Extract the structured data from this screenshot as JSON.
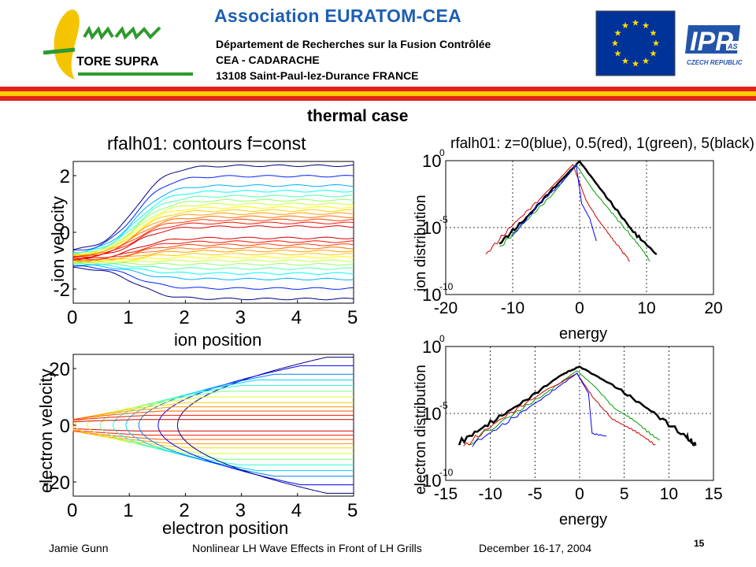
{
  "header": {
    "logo_text": "TORE SUPRA",
    "org_title": "Association  EURATOM-CEA",
    "org_lines": [
      "Département de Recherches sur la Fusion Contrôlée",
      "CEA - CADARACHE",
      "13108 Saint-Paul-lez-Durance   FRANCE"
    ],
    "partner_logo_text": "IPP",
    "partner_logo_sup": "AS",
    "partner_logo_caption": "CZECH REPUBLIC",
    "colors": {
      "title_blue": "#1d5fb4",
      "stripe_red": "#e2231a",
      "stripe_yellow": "#ffcc00",
      "logo_green": "#2e9a2e",
      "logo_yellow": "#f5c400",
      "eu_blue": "#003399",
      "eu_star": "#ffdd00"
    },
    "icons": [
      "omega-logo",
      "eu-flag-icon",
      "ipp-logo"
    ]
  },
  "slide_title": "thermal case",
  "footer": {
    "author": "Jamie Gunn",
    "talk_title": "Nonlinear LH Wave Effects in Front of LH Grills",
    "date": "December 16-17, 2004",
    "page_number": "15"
  },
  "chart_data": [
    {
      "type": "contour",
      "title": "rfalh01:         contours f=const",
      "xlabel": "ion position",
      "ylabel": "ion velocity",
      "xlim": [
        0,
        5
      ],
      "ylim": [
        -2.5,
        2.5
      ],
      "xticks": [
        "0",
        "1",
        "2",
        "3",
        "4",
        "5"
      ],
      "yticks": [
        "-2",
        "0",
        "2"
      ],
      "ytick_values": [
        -2,
        0,
        2
      ],
      "levels": [
        2.35,
        1.98,
        1.65,
        1.45,
        1.28,
        1.13,
        1.0,
        0.88,
        0.77,
        0.66,
        0.55,
        0.44,
        0.33,
        0.2,
        -0.2,
        -0.33,
        -0.44,
        -0.55,
        -0.66,
        -0.77,
        -0.88,
        -1.0,
        -1.13,
        -1.28,
        -1.45,
        -1.65,
        -1.98,
        -2.35
      ],
      "beam_center": -0.95,
      "colormap": "jet"
    },
    {
      "type": "line",
      "title": "rfalh01:  z=0(blue), 0.5(red), 1(green), 5(black)",
      "xlabel": "energy",
      "ylabel": "ion distribution",
      "xlim": [
        -20,
        20
      ],
      "ylim": [
        -10,
        0
      ],
      "yscale": "log",
      "xticks": [
        "-20",
        "-10",
        "0",
        "10",
        "20"
      ],
      "ytick_base": "10",
      "ytick_exponents": [
        "0",
        "-5",
        "-10"
      ],
      "grid": "dotted",
      "series": [
        {
          "color": "#000000",
          "x": [
            -12.0,
            -8.0,
            -4.0,
            0.0,
            4.0,
            8.0,
            11.5
          ],
          "y": [
            -6.2,
            -4.3,
            -2.1,
            -0.05,
            -2.7,
            -5.3,
            -7.0
          ]
        },
        {
          "color": "#00a000",
          "x": [
            -12.0,
            -8.0,
            -4.0,
            -0.5,
            2.0,
            5.0,
            8.0,
            10.5
          ],
          "y": [
            -6.5,
            -4.5,
            -2.5,
            -0.3,
            -2.2,
            -4.0,
            -5.8,
            -7.5
          ]
        },
        {
          "color": "#cc0000",
          "x": [
            -14.0,
            -10.0,
            -6.0,
            -1.0,
            1.0,
            3.0,
            5.5,
            7.5
          ],
          "y": [
            -7.0,
            -4.8,
            -2.9,
            -0.3,
            -3.0,
            -4.6,
            -6.2,
            -7.5
          ]
        },
        {
          "color": "#0000ff",
          "x": [
            -10.0,
            -6.0,
            -3.0,
            -0.5,
            0.3,
            1.5,
            2.5
          ],
          "y": [
            -5.6,
            -3.2,
            -1.8,
            -0.35,
            -3.2,
            -4.3,
            -6.0
          ]
        }
      ]
    },
    {
      "type": "contour",
      "title": "",
      "xlabel": "electron position",
      "ylabel": "electron velocity",
      "xlim": [
        0,
        5
      ],
      "ylim": [
        -25,
        25
      ],
      "xticks": [
        "0",
        "1",
        "2",
        "3",
        "4",
        "5"
      ],
      "yticks": [
        "-20",
        "0",
        "20"
      ],
      "ytick_values": [
        -20,
        0,
        20
      ],
      "levels": [
        24,
        21,
        18,
        16,
        14,
        12,
        10,
        8,
        6.5,
        5,
        3.5,
        2,
        -2,
        -3.5,
        -5,
        -6.5,
        -8,
        -10,
        -12,
        -14,
        -16,
        -18,
        -21,
        -24
      ],
      "colormap": "jet"
    },
    {
      "type": "line",
      "title": "",
      "xlabel": "energy",
      "ylabel": "electron distribution",
      "xlim": [
        -15,
        15
      ],
      "ylim": [
        -10,
        0
      ],
      "yscale": "log",
      "xticks": [
        "-15",
        "-10",
        "-5",
        "0",
        "5",
        "10",
        "15"
      ],
      "ytick_base": "10",
      "ytick_exponents": [
        "0",
        "-5",
        "-10"
      ],
      "grid": "dotted",
      "series": [
        {
          "color": "#000000",
          "x": [
            -13.5,
            -10.0,
            -6.0,
            -2.0,
            0.0,
            4.0,
            8.0,
            12.0,
            13.0
          ],
          "y": [
            -7.2,
            -5.7,
            -4.0,
            -2.1,
            -1.5,
            -3.0,
            -4.8,
            -6.8,
            -7.4
          ]
        },
        {
          "color": "#00a000",
          "x": [
            -12.5,
            -8.0,
            -4.0,
            -0.3,
            2.0,
            4.0,
            6.5,
            9.0
          ],
          "y": [
            -7.3,
            -5.3,
            -3.6,
            -1.8,
            -3.2,
            -4.7,
            -5.7,
            -7.0
          ]
        },
        {
          "color": "#cc0000",
          "x": [
            -13.0,
            -9.0,
            -5.0,
            -0.3,
            1.5,
            3.5,
            6.0,
            8.5
          ],
          "y": [
            -7.5,
            -5.5,
            -3.8,
            -2.0,
            -3.8,
            -5.3,
            -6.3,
            -7.3
          ]
        },
        {
          "color": "#0000ff",
          "x": [
            -12.0,
            -8.0,
            -4.0,
            -0.3,
            1.0,
            1.4,
            3.0
          ],
          "y": [
            -7.3,
            -5.6,
            -3.8,
            -2.0,
            -3.5,
            -6.5,
            -6.7
          ]
        }
      ]
    }
  ]
}
